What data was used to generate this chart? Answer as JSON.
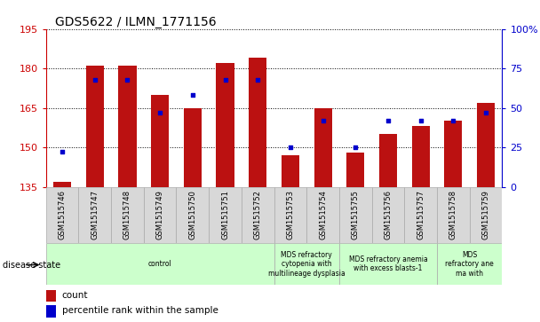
{
  "title": "GDS5622 / ILMN_1771156",
  "samples": [
    "GSM1515746",
    "GSM1515747",
    "GSM1515748",
    "GSM1515749",
    "GSM1515750",
    "GSM1515751",
    "GSM1515752",
    "GSM1515753",
    "GSM1515754",
    "GSM1515755",
    "GSM1515756",
    "GSM1515757",
    "GSM1515758",
    "GSM1515759"
  ],
  "counts": [
    137,
    181,
    181,
    170,
    165,
    182,
    184,
    147,
    165,
    148,
    155,
    158,
    160,
    167
  ],
  "percentile_ranks": [
    22,
    68,
    68,
    47,
    58,
    68,
    68,
    25,
    42,
    25,
    42,
    42,
    42,
    47
  ],
  "y_min": 135,
  "y_max": 195,
  "y_ticks": [
    135,
    150,
    165,
    180,
    195
  ],
  "y2_ticks": [
    0,
    25,
    50,
    75,
    100
  ],
  "bar_color": "#bb1111",
  "dot_color": "#0000cc",
  "group_boundaries": [
    {
      "start": 0,
      "end": 7,
      "label": "control"
    },
    {
      "start": 7,
      "end": 9,
      "label": "MDS refractory\ncytopenia with\nmultilineage dysplasia"
    },
    {
      "start": 9,
      "end": 12,
      "label": "MDS refractory anemia\nwith excess blasts-1"
    },
    {
      "start": 12,
      "end": 14,
      "label": "MDS\nrefractory ane\nma with"
    }
  ],
  "group_color": "#ccffcc",
  "group_edge_color": "#aaaaaa"
}
